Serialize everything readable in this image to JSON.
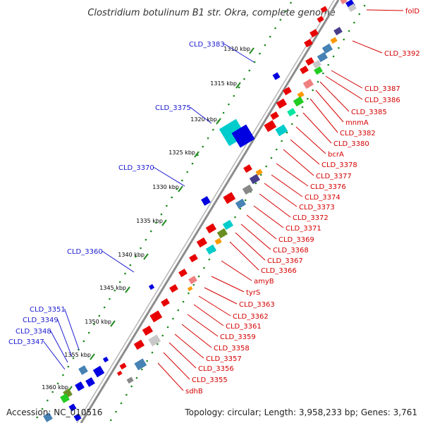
{
  "title": "Clostridium botulinum B1 str. Okra, complete genome",
  "footer": {
    "accession": "Accession: NC_010516",
    "topology": "Topology: circular; Length: 3,958,233 bp; Genes: 3,761"
  },
  "scale_ticks": [
    "1310 kbp",
    "1315 kbp",
    "1320 kbp",
    "1325 kbp",
    "1330 kbp",
    "1335 kbp",
    "1340 kbp",
    "1345 kbp",
    "1350 kbp",
    "1355 kbp",
    "1360 kbp"
  ],
  "left_labels": [
    "CLD_3383",
    "CLD_3375",
    "CLD_3370",
    "CLD_3360",
    "CLD_3351",
    "CLD_3349",
    "CLD_3348",
    "CLD_3347"
  ],
  "right_labels": [
    "folD",
    "CLD_3392",
    "CLD_3387",
    "CLD_3386",
    "CLD_3385",
    "mnmA",
    "CLD_3382",
    "CLD_3380",
    "bcrA",
    "CLD_3378",
    "CLD_3377",
    "CLD_3376",
    "CLD_3374",
    "CLD_3373",
    "CLD_3372",
    "CLD_3371",
    "CLD_3369",
    "CLD_3368",
    "CLD_3367",
    "CLD_3366",
    "amyB",
    "tyrS",
    "CLD_3363",
    "CLD_3362",
    "CLD_3361",
    "CLD_3359",
    "CLD_3358",
    "CLD_3357",
    "CLD_3356",
    "CLD_3355",
    "sdhB"
  ],
  "colors": {
    "backbone": "#8c8c8c",
    "tick_dots": "#1f8a1f",
    "forward_gene": "#e80000",
    "reverse_gene": "#0000e0",
    "cyan_gene": "#00cccc",
    "steel_gene": "#4682b4",
    "pink_gene": "#f08080",
    "orange_gene": "#ff9900",
    "olive_gene": "#6b8e23",
    "green_gene": "#22cc22",
    "mint_gene": "#00e6a0",
    "slate_gene": "#483d8b",
    "gray_gene": "#888888",
    "light_gray_gene": "#c8c8c8",
    "label_blue": "#1a1ad0",
    "label_red": "#d40000"
  }
}
